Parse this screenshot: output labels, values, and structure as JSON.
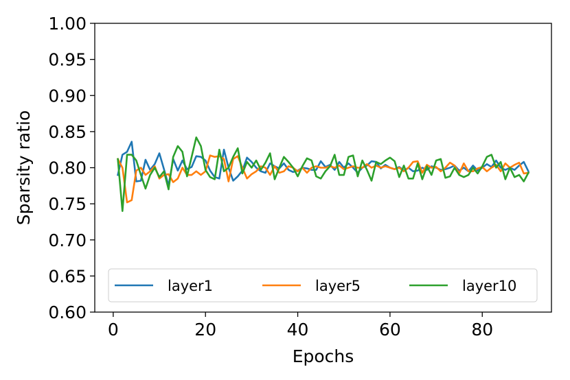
{
  "chart_data": {
    "type": "line",
    "xlabel": "Epochs",
    "ylabel": "Sparsity ratio",
    "xlim": [
      -4,
      95
    ],
    "ylim": [
      0.6,
      1.0
    ],
    "xticks": [
      0,
      20,
      40,
      60,
      80
    ],
    "xtick_labels": [
      "0",
      "20",
      "40",
      "60",
      "80"
    ],
    "yticks": [
      0.6,
      0.65,
      0.7,
      0.75,
      0.8,
      0.85,
      0.9,
      0.95,
      1.0
    ],
    "ytick_labels": [
      "0.60",
      "0.65",
      "0.70",
      "0.75",
      "0.80",
      "0.85",
      "0.90",
      "0.95",
      "1.00"
    ],
    "grid": false,
    "legend_position": "bottom",
    "x": [
      1,
      2,
      3,
      4,
      5,
      6,
      7,
      8,
      9,
      10,
      11,
      12,
      13,
      14,
      15,
      16,
      17,
      18,
      19,
      20,
      21,
      22,
      23,
      24,
      25,
      26,
      27,
      28,
      29,
      30,
      31,
      32,
      33,
      34,
      35,
      36,
      37,
      38,
      39,
      40,
      41,
      42,
      43,
      44,
      45,
      46,
      47,
      48,
      49,
      50,
      51,
      52,
      53,
      54,
      55,
      56,
      57,
      58,
      59,
      60,
      61,
      62,
      63,
      64,
      65,
      66,
      67,
      68,
      69,
      70,
      71,
      72,
      73,
      74,
      75,
      76,
      77,
      78,
      79,
      80,
      81,
      82,
      83,
      84,
      85,
      86,
      87,
      88,
      89,
      90
    ],
    "series": [
      {
        "name": "layer1",
        "color": "#1f77b4",
        "values": [
          0.79,
          0.818,
          0.822,
          0.836,
          0.781,
          0.782,
          0.811,
          0.797,
          0.805,
          0.82,
          0.798,
          0.775,
          0.812,
          0.796,
          0.81,
          0.798,
          0.801,
          0.816,
          0.815,
          0.81,
          0.796,
          0.787,
          0.785,
          0.825,
          0.8,
          0.782,
          0.788,
          0.796,
          0.814,
          0.808,
          0.8,
          0.795,
          0.793,
          0.806,
          0.802,
          0.799,
          0.806,
          0.797,
          0.794,
          0.796,
          0.8,
          0.799,
          0.797,
          0.797,
          0.809,
          0.801,
          0.804,
          0.797,
          0.808,
          0.8,
          0.806,
          0.8,
          0.793,
          0.8,
          0.803,
          0.809,
          0.808,
          0.799,
          0.804,
          0.8,
          0.798,
          0.801,
          0.796,
          0.8,
          0.795,
          0.796,
          0.8,
          0.797,
          0.802,
          0.8,
          0.797,
          0.798,
          0.8,
          0.803,
          0.796,
          0.8,
          0.795,
          0.803,
          0.796,
          0.8,
          0.805,
          0.801,
          0.81,
          0.8,
          0.797,
          0.8,
          0.797,
          0.803,
          0.808,
          0.795
        ]
      },
      {
        "name": "layer5",
        "color": "#ff7f0e",
        "values": [
          0.812,
          0.8,
          0.752,
          0.755,
          0.796,
          0.8,
          0.79,
          0.795,
          0.802,
          0.785,
          0.79,
          0.791,
          0.78,
          0.785,
          0.8,
          0.79,
          0.79,
          0.795,
          0.79,
          0.795,
          0.817,
          0.815,
          0.816,
          0.812,
          0.781,
          0.812,
          0.816,
          0.8,
          0.785,
          0.791,
          0.795,
          0.802,
          0.8,
          0.79,
          0.802,
          0.793,
          0.795,
          0.802,
          0.8,
          0.795,
          0.8,
          0.793,
          0.8,
          0.802,
          0.8,
          0.8,
          0.802,
          0.8,
          0.803,
          0.798,
          0.8,
          0.802,
          0.8,
          0.8,
          0.805,
          0.8,
          0.803,
          0.8,
          0.802,
          0.8,
          0.798,
          0.8,
          0.795,
          0.8,
          0.808,
          0.809,
          0.793,
          0.804,
          0.8,
          0.801,
          0.795,
          0.8,
          0.807,
          0.803,
          0.792,
          0.806,
          0.795,
          0.795,
          0.799,
          0.801,
          0.795,
          0.8,
          0.804,
          0.795,
          0.806,
          0.8,
          0.804,
          0.807,
          0.792,
          0.793
        ]
      },
      {
        "name": "layer10",
        "color": "#2ca02c",
        "values": [
          0.812,
          0.74,
          0.818,
          0.818,
          0.81,
          0.79,
          0.771,
          0.79,
          0.8,
          0.787,
          0.795,
          0.77,
          0.815,
          0.83,
          0.822,
          0.788,
          0.815,
          0.842,
          0.83,
          0.797,
          0.787,
          0.784,
          0.825,
          0.795,
          0.8,
          0.815,
          0.827,
          0.792,
          0.808,
          0.8,
          0.81,
          0.797,
          0.807,
          0.82,
          0.784,
          0.8,
          0.815,
          0.808,
          0.8,
          0.788,
          0.802,
          0.813,
          0.81,
          0.788,
          0.785,
          0.795,
          0.802,
          0.818,
          0.79,
          0.79,
          0.815,
          0.817,
          0.788,
          0.81,
          0.797,
          0.782,
          0.808,
          0.805,
          0.81,
          0.814,
          0.809,
          0.787,
          0.803,
          0.785,
          0.785,
          0.806,
          0.784,
          0.802,
          0.79,
          0.81,
          0.812,
          0.786,
          0.788,
          0.8,
          0.79,
          0.787,
          0.79,
          0.8,
          0.792,
          0.802,
          0.815,
          0.818,
          0.8,
          0.808,
          0.784,
          0.8,
          0.787,
          0.79,
          0.781,
          0.793
        ]
      }
    ]
  }
}
